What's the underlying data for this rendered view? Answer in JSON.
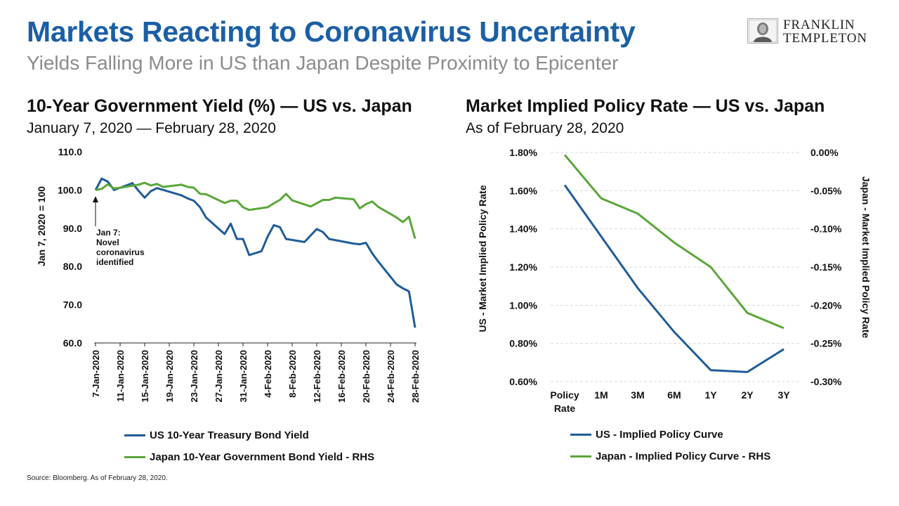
{
  "header": {
    "title": "Markets Reacting to Coronavirus Uncertainty",
    "subtitle": "Yields Falling More in US than Japan Despite Proximity to Epicenter",
    "logo_line1": "FRANKLIN",
    "logo_line2": "TEMPLETON"
  },
  "footer": {
    "source": "Source: Bloomberg.  As of February 28, 2020."
  },
  "colors": {
    "title": "#1b5fa6",
    "us_line": "#1f5c99",
    "japan_line": "#5aa63a",
    "subtitle": "#8c8c8c"
  },
  "chart_data": [
    {
      "type": "line",
      "title": "10-Year Government Yield (%) — US vs. Japan",
      "subtitle": "January 7, 2020 — February 28, 2020",
      "ylabel": "Jan 7, 2020 = 100",
      "ylim": [
        60,
        110
      ],
      "yticks": [
        "110.0",
        "100.0",
        "90.0",
        "80.0",
        "70.0",
        "60.0"
      ],
      "grid": false,
      "legend_position": "bottom",
      "xticks": [
        "7-Jan-2020",
        "11-Jan-2020",
        "15-Jan-2020",
        "19-Jan-2020",
        "23-Jan-2020",
        "27-Jan-2020",
        "31-Jan-2020",
        "4-Feb-2020",
        "8-Feb-2020",
        "12-Feb-2020",
        "16-Feb-2020",
        "20-Feb-2020",
        "24-Feb-2020",
        "28-Feb-2020"
      ],
      "annotation": {
        "x": "2020-01-07",
        "lines": [
          "Jan 7:",
          "Novel",
          "coronavirus",
          "identified"
        ]
      },
      "series": [
        {
          "name": "US 10-Year Treasury Bond Yield",
          "color": "#1f5c99",
          "points": [
            [
              "2020-01-07",
              100.0
            ],
            [
              "2020-01-08",
              103.0
            ],
            [
              "2020-01-09",
              102.2
            ],
            [
              "2020-01-10",
              100.0
            ],
            [
              "2020-01-13",
              101.8
            ],
            [
              "2020-01-14",
              99.8
            ],
            [
              "2020-01-15",
              98.0
            ],
            [
              "2020-01-16",
              99.7
            ],
            [
              "2020-01-17",
              100.5
            ],
            [
              "2020-01-21",
              98.6
            ],
            [
              "2020-01-22",
              97.8
            ],
            [
              "2020-01-23",
              97.2
            ],
            [
              "2020-01-24",
              95.5
            ],
            [
              "2020-01-25",
              92.8
            ],
            [
              "2020-01-28",
              88.5
            ],
            [
              "2020-01-29",
              91.2
            ],
            [
              "2020-01-30",
              87.2
            ],
            [
              "2020-01-31",
              87.2
            ],
            [
              "2020-02-01",
              83.0
            ],
            [
              "2020-02-03",
              84.0
            ],
            [
              "2020-02-04",
              87.8
            ],
            [
              "2020-02-05",
              90.8
            ],
            [
              "2020-02-06",
              90.3
            ],
            [
              "2020-02-07",
              87.2
            ],
            [
              "2020-02-10",
              86.4
            ],
            [
              "2020-02-12",
              89.8
            ],
            [
              "2020-02-13",
              89.0
            ],
            [
              "2020-02-14",
              87.2
            ],
            [
              "2020-02-18",
              86.0
            ],
            [
              "2020-02-19",
              85.8
            ],
            [
              "2020-02-20",
              86.2
            ],
            [
              "2020-02-21",
              83.5
            ],
            [
              "2020-02-22",
              81.3
            ],
            [
              "2020-02-25",
              75.3
            ],
            [
              "2020-02-26",
              74.3
            ],
            [
              "2020-02-27",
              73.5
            ],
            [
              "2020-02-28",
              64.0
            ]
          ]
        },
        {
          "name": "Japan 10-Year Government Bond Yield - RHS",
          "color": "#5aa63a",
          "points": [
            [
              "2020-01-07",
              100.0
            ],
            [
              "2020-01-08",
              100.3
            ],
            [
              "2020-01-09",
              101.5
            ],
            [
              "2020-01-10",
              100.4
            ],
            [
              "2020-01-11",
              100.6
            ],
            [
              "2020-01-14",
              101.4
            ],
            [
              "2020-01-15",
              101.9
            ],
            [
              "2020-01-16",
              101.2
            ],
            [
              "2020-01-17",
              101.6
            ],
            [
              "2020-01-18",
              100.8
            ],
            [
              "2020-01-21",
              101.4
            ],
            [
              "2020-01-22",
              100.8
            ],
            [
              "2020-01-23",
              100.6
            ],
            [
              "2020-01-24",
              99.0
            ],
            [
              "2020-01-25",
              98.9
            ],
            [
              "2020-01-28",
              96.6
            ],
            [
              "2020-01-29",
              97.2
            ],
            [
              "2020-01-30",
              97.2
            ],
            [
              "2020-01-31",
              95.5
            ],
            [
              "2020-02-01",
              94.8
            ],
            [
              "2020-02-04",
              95.5
            ],
            [
              "2020-02-05",
              96.5
            ],
            [
              "2020-02-06",
              97.4
            ],
            [
              "2020-02-07",
              99.0
            ],
            [
              "2020-02-08",
              97.3
            ],
            [
              "2020-02-11",
              95.7
            ],
            [
              "2020-02-13",
              97.4
            ],
            [
              "2020-02-14",
              97.4
            ],
            [
              "2020-02-15",
              98.0
            ],
            [
              "2020-02-18",
              97.6
            ],
            [
              "2020-02-19",
              95.2
            ],
            [
              "2020-02-20",
              96.3
            ],
            [
              "2020-02-21",
              97.0
            ],
            [
              "2020-02-22",
              95.6
            ],
            [
              "2020-02-25",
              92.8
            ],
            [
              "2020-02-26",
              91.6
            ],
            [
              "2020-02-27",
              93.0
            ],
            [
              "2020-02-28",
              87.3
            ]
          ]
        }
      ]
    },
    {
      "type": "line",
      "title": "Market Implied Policy Rate — US vs. Japan",
      "subtitle": "As of February 28, 2020",
      "ylabel_left": "US - Market Implied Policy Rate",
      "ylabel_right": "Japan - Market Implied Policy Rate",
      "categories": [
        "Policy Rate",
        "1M",
        "3M",
        "6M",
        "1Y",
        "2Y",
        "3Y"
      ],
      "ylim_left": [
        0.6,
        1.8
      ],
      "yticks_left": [
        "1.80%",
        "1.60%",
        "1.40%",
        "1.20%",
        "1.00%",
        "0.80%",
        "0.60%"
      ],
      "ylim_right": [
        -0.3,
        0.0
      ],
      "yticks_right": [
        "0.00%",
        "-0.05%",
        "-0.10%",
        "-0.15%",
        "-0.20%",
        "-0.25%",
        "-0.30%"
      ],
      "grid": true,
      "legend_position": "bottom",
      "series": [
        {
          "name": "US - Implied Policy Curve",
          "axis": "left",
          "color": "#1f5c99",
          "values": [
            1.63,
            1.36,
            1.09,
            0.86,
            0.66,
            0.65,
            0.77
          ]
        },
        {
          "name": "Japan - Implied Policy Curve - RHS",
          "axis": "right",
          "color": "#5aa63a",
          "values": [
            -0.003,
            -0.06,
            -0.08,
            -0.118,
            -0.15,
            -0.21,
            -0.23
          ]
        }
      ]
    }
  ]
}
